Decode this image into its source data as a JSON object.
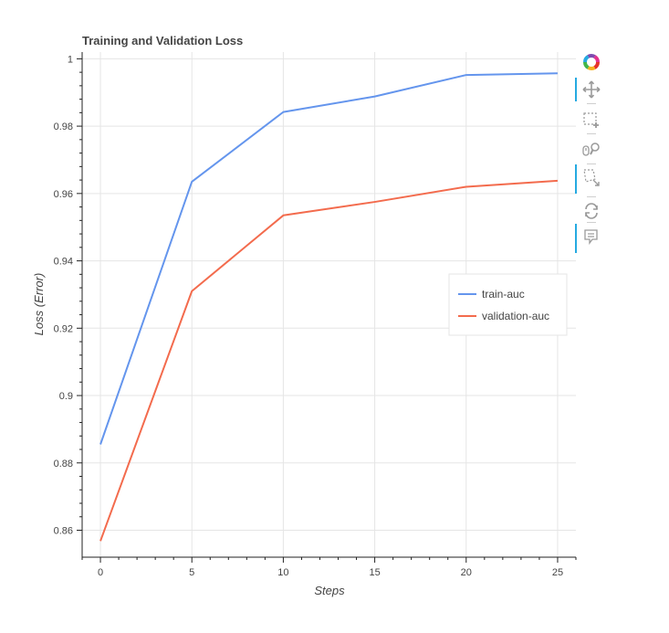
{
  "chart_data": {
    "type": "line",
    "title": "Training and Validation Loss",
    "xlabel": "Steps",
    "ylabel": "Loss (Error)",
    "x": [
      0,
      5,
      10,
      15,
      20,
      25
    ],
    "xlim": [
      -1,
      26
    ],
    "ylim": [
      0.852,
      1.002
    ],
    "xticks": [
      0,
      5,
      10,
      15,
      20,
      25
    ],
    "xtick_labels": [
      "0",
      "5",
      "10",
      "15",
      "20",
      "25"
    ],
    "yticks": [
      0.86,
      0.88,
      0.9,
      0.92,
      0.94,
      0.96,
      0.98,
      1.0
    ],
    "ytick_labels": [
      "0.86",
      "0.88",
      "0.9",
      "0.92",
      "0.94",
      "0.96",
      "0.98",
      "1"
    ],
    "grid": true,
    "legend_position": "center-right",
    "series": [
      {
        "name": "train-auc",
        "color": "#6495ed",
        "values": [
          0.8855,
          0.9635,
          0.9842,
          0.9888,
          0.9952,
          0.9957
        ]
      },
      {
        "name": "validation-auc",
        "color": "#f36b4d",
        "values": [
          0.8568,
          0.931,
          0.9535,
          0.9575,
          0.962,
          0.9638
        ]
      }
    ]
  },
  "toolbar": {
    "tools": [
      {
        "name": "bokeh-logo-icon",
        "active": false
      },
      {
        "name": "pan-tool-icon",
        "active": true
      },
      {
        "name": "box-zoom-tool-icon",
        "active": false
      },
      {
        "name": "wheel-zoom-tool-icon",
        "active": false
      },
      {
        "name": "lasso-select-tool-icon",
        "active": true
      },
      {
        "name": "reset-tool-icon",
        "active": false
      },
      {
        "name": "hover-tool-icon",
        "active": true
      }
    ]
  }
}
